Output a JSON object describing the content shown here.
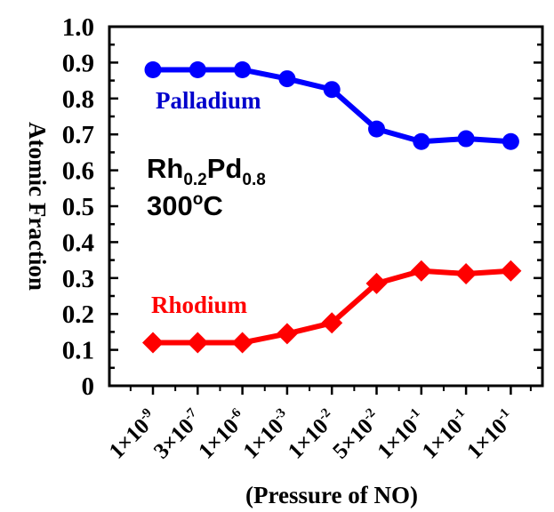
{
  "chart_data": {
    "type": "line",
    "title": "",
    "xlabel": "(Pressure of NO)",
    "ylabel": "Atomic Fraction",
    "ylim": [
      0,
      1.0
    ],
    "yticks": [
      "0",
      "0.1",
      "0.2",
      "0.3",
      "0.4",
      "0.5",
      "0.6",
      "0.7",
      "0.8",
      "0.9",
      "1.0"
    ],
    "categories": [
      {
        "mant": "1×10",
        "exp": "-9"
      },
      {
        "mant": "3×10",
        "exp": "-7"
      },
      {
        "mant": "1×10",
        "exp": "-6"
      },
      {
        "mant": "1×10",
        "exp": "-3"
      },
      {
        "mant": "1×10",
        "exp": "-2"
      },
      {
        "mant": "5×10",
        "exp": "-2"
      },
      {
        "mant": "1×10",
        "exp": "-1"
      },
      {
        "mant": "1×10",
        "exp": "-1"
      },
      {
        "mant": "1×10",
        "exp": "-1"
      }
    ],
    "series": [
      {
        "name": "Palladium",
        "color": "#0000ff",
        "label_color": "#0000cc",
        "marker": "circle",
        "values": [
          0.88,
          0.88,
          0.88,
          0.855,
          0.825,
          0.715,
          0.68,
          0.688,
          0.68
        ]
      },
      {
        "name": "Rhodium",
        "color": "#ff0000",
        "label_color": "#ff0000",
        "marker": "diamond",
        "values": [
          0.12,
          0.12,
          0.12,
          0.145,
          0.175,
          0.285,
          0.32,
          0.312,
          0.32
        ]
      }
    ],
    "annotation": {
      "el1": "Rh",
      "sub1": "0.2",
      "el2": "Pd",
      "sub2": "0.8",
      "temp": "300",
      "deg": "o",
      "unit": "C"
    },
    "grid": false,
    "legend": "inline labels"
  }
}
